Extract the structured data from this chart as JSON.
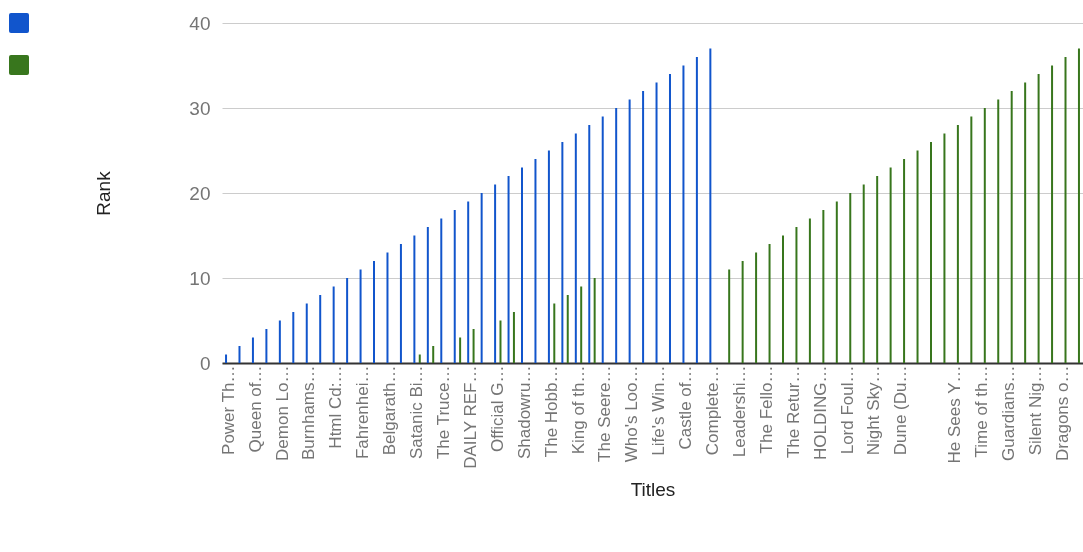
{
  "chart_data": {
    "type": "bar",
    "xlabel": "Titles",
    "ylabel": "Rank",
    "categories": [
      "Power Th…",
      null,
      "Queen of…",
      null,
      "Demon Lo…",
      null,
      "Burnhams…",
      null,
      "Html Cd:…",
      null,
      "Fahrenhei…",
      null,
      "Belgarath…",
      null,
      "Satanic Bi…",
      null,
      "The Truce…",
      null,
      "DAILY REF…",
      null,
      "Official G…",
      null,
      "Shadowru…",
      null,
      "The Hobb…",
      null,
      "King of th…",
      null,
      "The Seere…",
      null,
      "Who's Loo…",
      null,
      "Life's Win…",
      null,
      "Castle of…",
      null,
      "Complete…",
      null,
      "Leadershi…",
      null,
      "The Fello…",
      null,
      "The Retur…",
      null,
      "HOLDING…",
      null,
      "Lord Foul…",
      null,
      "Night Sky…",
      null,
      "Dune (Du…",
      null,
      null,
      null,
      "He Sees Y…",
      null,
      "Time of th…",
      null,
      "Guardians…",
      null,
      "Silent Nig…",
      null,
      "Dragons o…",
      null
    ],
    "series": [
      {
        "color": "#1155cc",
        "values": [
          1,
          2,
          3,
          4,
          5,
          6,
          7,
          8,
          9,
          10,
          11,
          12,
          13,
          14,
          15,
          16,
          17,
          18,
          19,
          20,
          21,
          22,
          23,
          24,
          25,
          26,
          27,
          28,
          29,
          30,
          31,
          32,
          33,
          34,
          35,
          36,
          37,
          null,
          null,
          null,
          null,
          null,
          null,
          null,
          null,
          null,
          null,
          null,
          null,
          null,
          null,
          null,
          null,
          null,
          null,
          null,
          null,
          null,
          null,
          null,
          null,
          null,
          null,
          null
        ]
      },
      {
        "color": "#38761d",
        "values": [
          null,
          null,
          null,
          null,
          null,
          null,
          null,
          null,
          null,
          null,
          null,
          null,
          null,
          null,
          1,
          2,
          null,
          3,
          4,
          null,
          5,
          6,
          null,
          null,
          7,
          8,
          9,
          10,
          null,
          null,
          null,
          null,
          null,
          null,
          null,
          null,
          null,
          11,
          12,
          13,
          14,
          15,
          16,
          17,
          18,
          19,
          20,
          21,
          22,
          23,
          24,
          25,
          26,
          27,
          28,
          29,
          30,
          31,
          32,
          33,
          34,
          35,
          36,
          37
        ]
      }
    ],
    "ylim": [
      0,
      40
    ],
    "yticks": [
      0,
      10,
      20,
      30,
      40
    ],
    "grid": "y"
  }
}
